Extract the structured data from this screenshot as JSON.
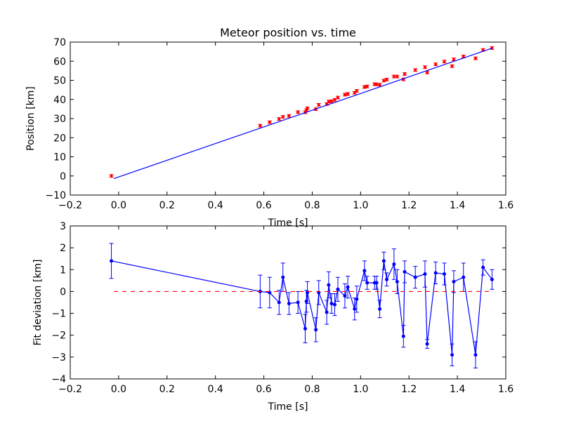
{
  "chart_data": [
    {
      "type": "scatter",
      "title": "Meteor position vs. time",
      "xlabel": "Time [s]",
      "ylabel": "Position [km]",
      "xlim": [
        -0.2,
        1.6
      ],
      "ylim": [
        -10,
        70
      ],
      "xticks": [
        -0.2,
        0.0,
        0.2,
        0.4,
        0.6,
        0.8,
        1.0,
        1.2,
        1.4,
        1.6
      ],
      "xtick_labels": [
        "−0.2",
        "0.0",
        "0.2",
        "0.4",
        "0.6",
        "0.8",
        "1.0",
        "1.2",
        "1.4",
        "1.6"
      ],
      "yticks": [
        -10,
        0,
        10,
        20,
        30,
        40,
        50,
        60,
        70
      ],
      "ytick_labels": [
        "−10",
        "0",
        "10",
        "20",
        "30",
        "40",
        "50",
        "60",
        "70"
      ],
      "grid": false,
      "series": [
        {
          "kind": "errorbar-points",
          "color": "#ff0000",
          "x": [
            -0.03,
            0.585,
            0.624,
            0.663,
            0.679,
            0.704,
            0.741,
            0.771,
            0.776,
            0.78,
            0.815,
            0.827,
            0.86,
            0.868,
            0.88,
            0.893,
            0.906,
            0.935,
            0.947,
            0.975,
            0.984,
            1.016,
            1.027,
            1.058,
            1.066,
            1.079,
            1.096,
            1.108,
            1.138,
            1.151,
            1.177,
            1.182,
            1.226,
            1.266,
            1.275,
            1.31,
            1.346,
            1.378,
            1.385,
            1.425,
            1.475,
            1.506,
            1.543
          ],
          "y": [
            0,
            26.3,
            28.1,
            29.8,
            30.9,
            31.4,
            33.4,
            33.3,
            34.4,
            35.4,
            34.9,
            37.2,
            37.6,
            38.9,
            39.1,
            39.8,
            41.0,
            42.5,
            42.9,
            43.5,
            44.5,
            46.5,
            46.8,
            48.0,
            47.9,
            47.7,
            49.9,
            50.4,
            52.0,
            52.0,
            50.5,
            53.3,
            55.4,
            56.9,
            54.1,
            58.4,
            59.8,
            57.4,
            61.0,
            62.5,
            61.5,
            65.9,
            66.9
          ],
          "yerr": 0.7
        },
        {
          "kind": "fit-line",
          "color": "#0000ff",
          "x": [
            -0.02,
            1.545
          ],
          "y": [
            -1.4,
            66.9
          ]
        }
      ]
    },
    {
      "type": "line",
      "title": "",
      "xlabel": "Time [s]",
      "ylabel": "Fit deviation [km]",
      "xlim": [
        -0.2,
        1.6
      ],
      "ylim": [
        -4,
        3
      ],
      "xticks": [
        -0.2,
        0.0,
        0.2,
        0.4,
        0.6,
        0.8,
        1.0,
        1.2,
        1.4,
        1.6
      ],
      "xtick_labels": [
        "−0.2",
        "0.0",
        "0.2",
        "0.4",
        "0.6",
        "0.8",
        "1.0",
        "1.2",
        "1.4",
        "1.6"
      ],
      "yticks": [
        -4,
        -3,
        -2,
        -1,
        0,
        1,
        2,
        3
      ],
      "ytick_labels": [
        "−4",
        "−3",
        "−2",
        "−1",
        "0",
        "1",
        "2",
        "3"
      ],
      "grid": false,
      "series": [
        {
          "kind": "errorbar-line",
          "color": "#0000ff",
          "x": [
            -0.03,
            0.585,
            0.624,
            0.663,
            0.679,
            0.704,
            0.741,
            0.771,
            0.776,
            0.78,
            0.815,
            0.827,
            0.86,
            0.868,
            0.88,
            0.893,
            0.906,
            0.935,
            0.947,
            0.975,
            0.984,
            1.016,
            1.027,
            1.058,
            1.066,
            1.079,
            1.096,
            1.108,
            1.138,
            1.151,
            1.177,
            1.182,
            1.226,
            1.266,
            1.275,
            1.31,
            1.346,
            1.378,
            1.385,
            1.425,
            1.475,
            1.506,
            1.543
          ],
          "y": [
            1.4,
            0.0,
            -0.05,
            -0.5,
            0.65,
            -0.55,
            -0.5,
            -1.7,
            -0.45,
            -0.05,
            -1.75,
            -0.05,
            -0.95,
            0.3,
            -0.55,
            -0.6,
            0.1,
            -0.2,
            0.2,
            -0.8,
            -0.35,
            0.95,
            0.4,
            0.4,
            0.4,
            -0.8,
            1.4,
            0.55,
            1.25,
            0.45,
            -2.05,
            0.9,
            0.65,
            0.8,
            -2.4,
            0.85,
            0.8,
            -2.9,
            0.45,
            0.65,
            -2.9,
            1.1,
            0.55
          ],
          "yerr": [
            0.8,
            0.75,
            0.7,
            0.55,
            0.65,
            0.5,
            0.5,
            0.65,
            0.5,
            0.5,
            0.55,
            0.55,
            0.55,
            0.6,
            0.45,
            0.5,
            0.55,
            0.55,
            0.5,
            0.5,
            0.6,
            0.45,
            0.3,
            0.3,
            0.3,
            0.4,
            0.4,
            0.3,
            0.7,
            0.55,
            0.5,
            0.5,
            0.5,
            0.6,
            0.2,
            0.5,
            0.5,
            0.5,
            0.5,
            0.65,
            0.6,
            0.35,
            0.45
          ]
        },
        {
          "kind": "reference-line",
          "color": "#ff0000",
          "style": "dashed",
          "x": [
            -0.02,
            1.545
          ],
          "y": [
            0,
            0
          ]
        }
      ]
    }
  ]
}
